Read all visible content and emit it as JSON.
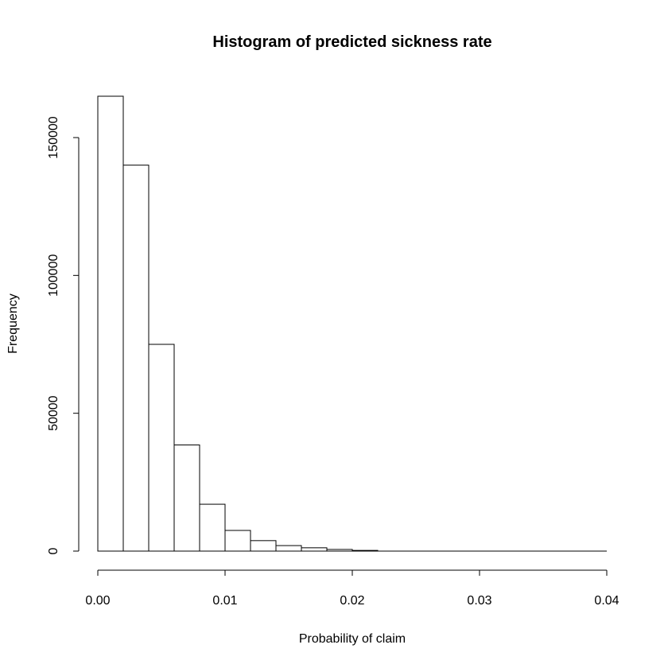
{
  "chart_data": {
    "type": "bar",
    "title": "Histogram of predicted sickness rate",
    "xlabel": "Probability of claim",
    "ylabel": "Frequency",
    "bin_edges": [
      0.0,
      0.002,
      0.004,
      0.006,
      0.008,
      0.01,
      0.012,
      0.014,
      0.016,
      0.018,
      0.02,
      0.022
    ],
    "values": [
      165000,
      140000,
      75000,
      38500,
      17000,
      7500,
      3800,
      2000,
      1200,
      600,
      250
    ],
    "xlim": [
      0,
      0.04
    ],
    "ylim": [
      0,
      165000
    ],
    "x_ticks": [
      0.0,
      0.01,
      0.02,
      0.03,
      0.04
    ],
    "x_tick_labels": [
      "0.00",
      "0.01",
      "0.02",
      "0.03",
      "0.04"
    ],
    "y_ticks": [
      0,
      50000,
      100000,
      150000
    ],
    "y_tick_labels": [
      "0",
      "50000",
      "100000",
      "150000"
    ],
    "grid": false,
    "colors": {
      "bar_fill": "#ffffff",
      "bar_stroke": "#000000"
    }
  }
}
